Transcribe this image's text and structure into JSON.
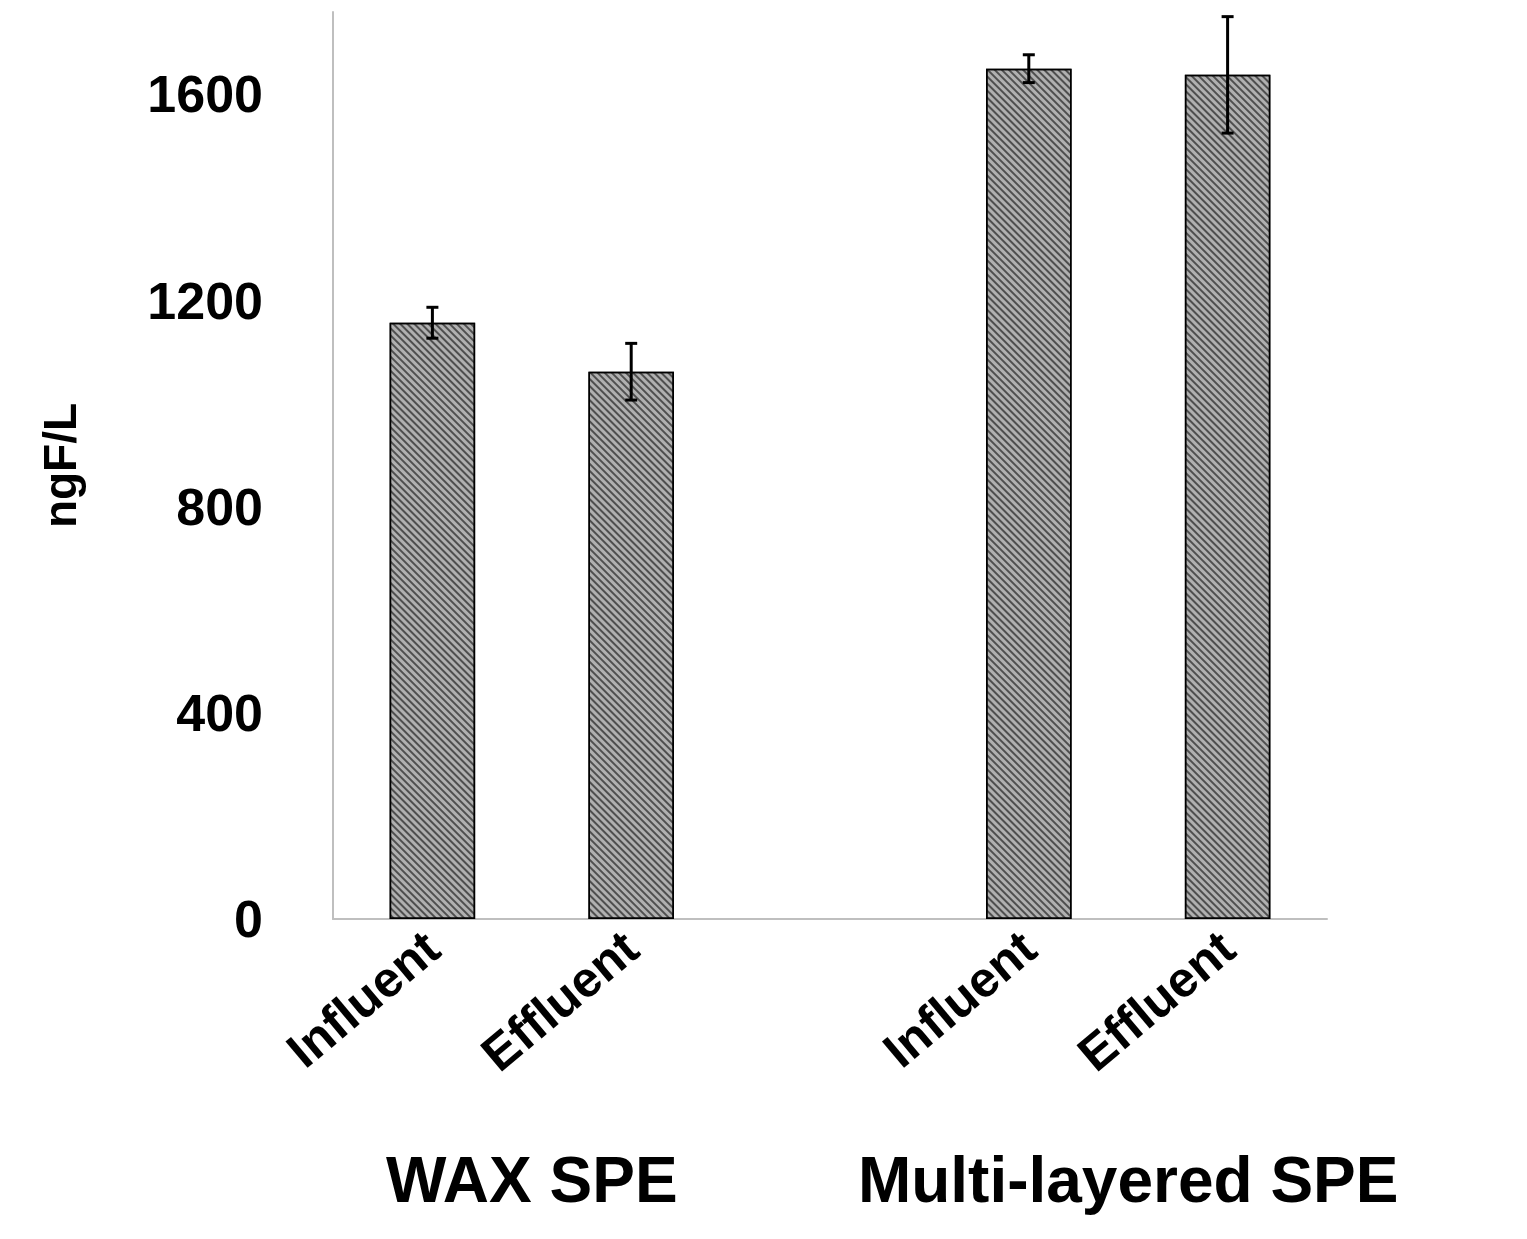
{
  "chart_data": {
    "type": "bar",
    "ylabel": "ngF/L",
    "categories": [
      "Influent",
      "Effluent",
      null,
      "Influent",
      "Effluent"
    ],
    "values": [
      1157,
      1062,
      null,
      1650,
      1638
    ],
    "errors": [
      30,
      55,
      null,
      27,
      113
    ],
    "color": "#b0b0b0",
    "ylim": [
      0,
      1760
    ],
    "yticks": [
      0,
      400,
      800,
      1200,
      1600
    ],
    "grid": false,
    "annotations": [
      "WAX SPE",
      "Multi-layered SPE"
    ]
  }
}
